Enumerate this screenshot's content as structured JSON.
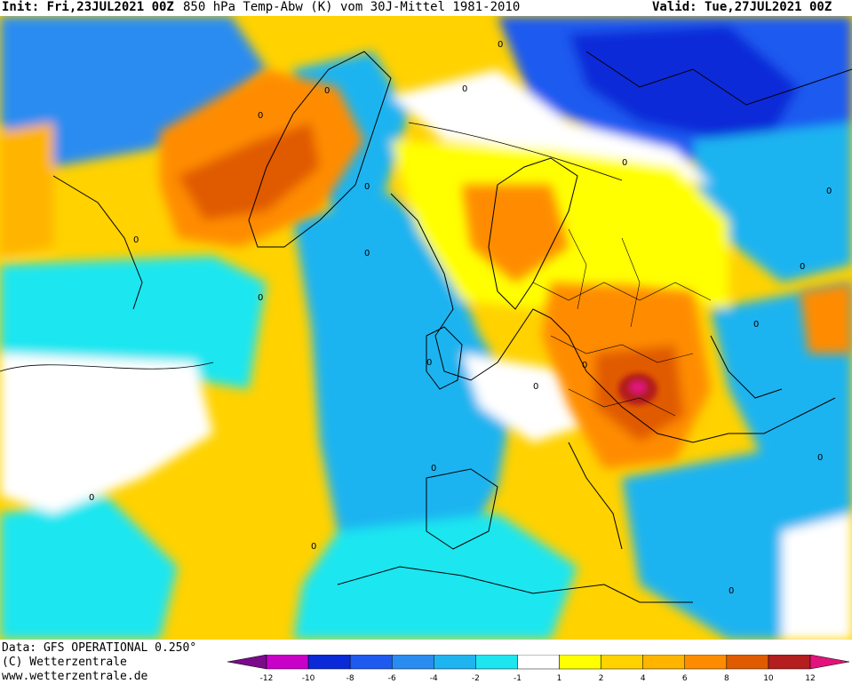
{
  "header": {
    "init": "Init: Fri,23JUL2021 00Z",
    "title": "850 hPa Temp-Abw (K) vom 30J-Mittel 1981-2010",
    "valid": "Valid: Tue,27JUL2021 00Z"
  },
  "footer": {
    "data_source": "Data: GFS OPERATIONAL 0.250°",
    "copyright": "(C) Wetterzentrale",
    "website": "www.wetterzentrale.de"
  },
  "legend": {
    "ticks": [
      "-12",
      "-10",
      "-8",
      "-6",
      "-4",
      "-2",
      "-1",
      "1",
      "2",
      "4",
      "6",
      "8",
      "10",
      "12"
    ],
    "colors": [
      "#7a0a8a",
      "#c800c8",
      "#0a2ad8",
      "#1e5af0",
      "#2a8cf0",
      "#1eb4f0",
      "#1ee6f0",
      "#ffffff",
      "#ffff00",
      "#ffd200",
      "#ffb400",
      "#ff8c00",
      "#e05a00",
      "#b41e1e",
      "#e0147a"
    ]
  },
  "map": {
    "contour_labels": [
      "0",
      "0",
      "0",
      "0",
      "0",
      "0",
      "0",
      "0",
      "0",
      "0",
      "0",
      "0",
      "0",
      "0",
      "0",
      "0",
      "0",
      "0",
      "0",
      "0"
    ]
  }
}
